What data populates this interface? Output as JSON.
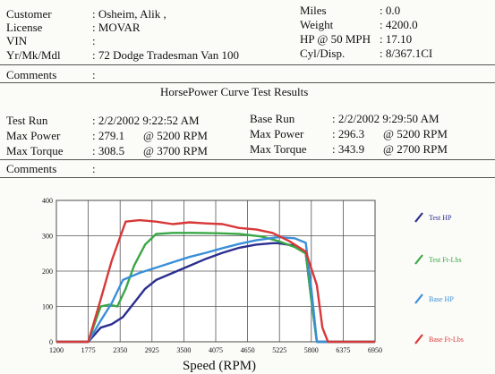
{
  "header": {
    "customer_label": "Customer",
    "customer_value": ": Osheim, Alik ,",
    "license_label": "License",
    "license_value": ": MOVAR",
    "vin_label": "VIN",
    "vin_value": ":",
    "ymm_label": "Yr/Mk/Mdl",
    "ymm_value": ": 72 Dodge Tradesman Van 100",
    "miles_label": "Miles",
    "miles_value": ": 0.0",
    "weight_label": "Weight",
    "weight_value": ": 4200.0",
    "hp50_label": "HP @ 50 MPH",
    "hp50_value": ": 17.10",
    "cyl_label": "Cyl/Disp.",
    "cyl_value": ": 8/367.1CI",
    "comments_label": "Comments",
    "comments_value": ":"
  },
  "results": {
    "title": "HorsePower Curve Test Results",
    "test_run_label": "Test Run",
    "test_run_value": ": 2/2/2002 9:22:52 AM",
    "test_power_label": "Max Power",
    "test_power_value": ": 279.1",
    "test_power_rpm": "@ 5200 RPM",
    "test_torque_label": "Max Torque",
    "test_torque_value": ": 308.5",
    "test_torque_rpm": "@ 3700 RPM",
    "base_run_label": "Base Run",
    "base_run_value": ": 2/2/2002 9:29:50 AM",
    "base_power_label": "Max Power",
    "base_power_value": ": 296.3",
    "base_power_rpm": "@ 5200  RPM",
    "base_torque_label": "Max Torque",
    "base_torque_value": ": 343.9",
    "base_torque_rpm": "@ 2700  RPM",
    "comments_label": "Comments",
    "comments_value": ":"
  },
  "chart_data": {
    "type": "line",
    "title": "",
    "xlabel": "Speed (RPM)",
    "ylabel": "",
    "xlim": [
      1200,
      6950
    ],
    "ylim": [
      0,
      400
    ],
    "x_ticks": [
      1200,
      1775,
      2350,
      2925,
      3500,
      4075,
      4650,
      5225,
      5800,
      6375,
      6950
    ],
    "y_ticks": [
      0,
      100,
      200,
      300,
      400
    ],
    "grid": true,
    "legend_position": "right",
    "series": [
      {
        "name": "Test HP",
        "color": "#2b2f8f",
        "x": [
          1200,
          1775,
          2000,
          2200,
          2400,
          2600,
          2800,
          3000,
          3300,
          3600,
          3900,
          4200,
          4500,
          4800,
          5100,
          5200,
          5500,
          5700,
          5800,
          5900,
          6200,
          6950
        ],
        "y": [
          0,
          0,
          40,
          50,
          70,
          110,
          150,
          175,
          195,
          215,
          235,
          252,
          266,
          275,
          279,
          279,
          272,
          250,
          120,
          0,
          0,
          0
        ]
      },
      {
        "name": "Test Ft-Lbs",
        "color": "#3aa846",
        "x": [
          1200,
          1775,
          2000,
          2150,
          2300,
          2450,
          2600,
          2800,
          3000,
          3300,
          3700,
          4100,
          4500,
          4900,
          5200,
          5500,
          5700,
          5800,
          5900,
          6200,
          6950
        ],
        "y": [
          0,
          0,
          100,
          105,
          100,
          150,
          215,
          275,
          305,
          308,
          308,
          307,
          305,
          298,
          285,
          268,
          250,
          120,
          0,
          0,
          0
        ]
      },
      {
        "name": "Base HP",
        "color": "#3a8fd8",
        "x": [
          1200,
          1775,
          2000,
          2200,
          2400,
          2700,
          3000,
          3300,
          3600,
          3900,
          4200,
          4500,
          4800,
          5100,
          5200,
          5500,
          5700,
          5800,
          5900,
          6200,
          6950
        ],
        "y": [
          0,
          0,
          60,
          110,
          175,
          195,
          210,
          225,
          240,
          252,
          265,
          277,
          287,
          294,
          296,
          293,
          280,
          150,
          0,
          0,
          0
        ]
      },
      {
        "name": "Base Ft-Lbs",
        "color": "#d83838",
        "x": [
          1200,
          1775,
          2000,
          2200,
          2450,
          2700,
          3000,
          3300,
          3600,
          3900,
          4200,
          4500,
          4800,
          5100,
          5400,
          5700,
          5900,
          6000,
          6100,
          6300,
          6950
        ],
        "y": [
          0,
          0,
          120,
          230,
          340,
          344,
          340,
          333,
          338,
          335,
          333,
          322,
          318,
          308,
          285,
          255,
          160,
          40,
          0,
          0,
          0
        ]
      }
    ]
  }
}
